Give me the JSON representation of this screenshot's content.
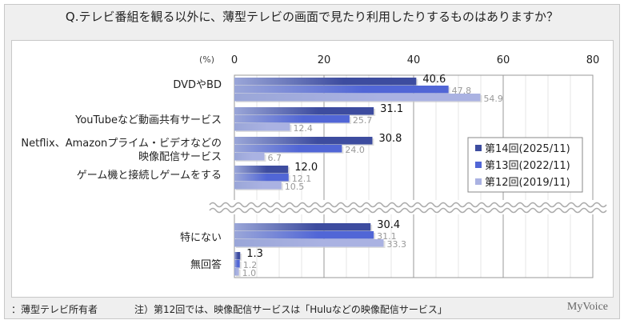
{
  "title": "Q.テレビ番組を観る以外に、薄型テレビの画面で見たり利用したりするものはありますか？",
  "footer": {
    "base": "：薄型テレビ所有者",
    "note": "注）第12回では、映像配信サービスは「Huluなどの映像配信サービス」",
    "logo": "MyVoice"
  },
  "chart_data": {
    "type": "bar",
    "orientation": "horizontal",
    "unit_label": "(%)",
    "xlim": [
      0,
      80
    ],
    "ticks": [
      "0",
      "20",
      "40",
      "60",
      "80"
    ],
    "grid": true,
    "axis_break": "between ゲーム機と接続しゲームをする and 特にない",
    "legend_position": "right",
    "categories": [
      "DVDやBD",
      "YouTubeなど動画共有サービス",
      "Netflix、Amazonプライム・ビデオなどの\n映像配信サービス",
      "ゲーム機と接続しゲームをする",
      "特にない",
      "無回答"
    ],
    "series": [
      {
        "name": "第14回(2025/11)",
        "color": "#3d4c9f",
        "values": [
          40.6,
          31.1,
          30.8,
          12.0,
          30.4,
          1.3
        ]
      },
      {
        "name": "第13回(2022/11)",
        "color": "#5166d6",
        "values": [
          47.8,
          25.7,
          24.0,
          12.1,
          31.1,
          1.2
        ]
      },
      {
        "name": "第12回(2019/11)",
        "color": "#aab2e2",
        "values": [
          54.9,
          12.4,
          6.7,
          10.5,
          33.3,
          1.0
        ]
      }
    ]
  }
}
